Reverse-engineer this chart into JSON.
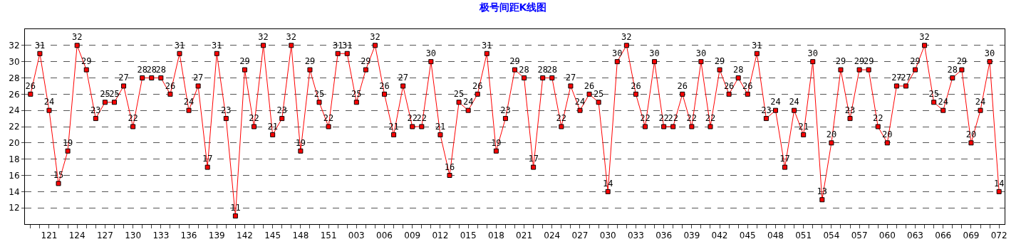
{
  "chart_data": {
    "type": "line",
    "title": "极号间距K线图",
    "categories": [
      null,
      null,
      "121",
      null,
      null,
      "124",
      null,
      null,
      "127",
      null,
      null,
      "130",
      null,
      null,
      "133",
      null,
      null,
      "136",
      null,
      null,
      "139",
      null,
      null,
      "142",
      null,
      null,
      "145",
      null,
      null,
      "148",
      null,
      null,
      "151",
      null,
      null,
      "003",
      null,
      null,
      "006",
      null,
      null,
      "009",
      null,
      null,
      "012",
      null,
      null,
      "015",
      null,
      null,
      "018",
      null,
      null,
      "021",
      null,
      null,
      "024",
      null,
      null,
      "027",
      null,
      null,
      "030",
      null,
      null,
      "033",
      null,
      null,
      "036",
      null,
      null,
      "039",
      null,
      null,
      "042",
      null,
      null,
      "045",
      null,
      null,
      "048",
      null,
      null,
      "051",
      null,
      null,
      "054",
      null,
      null,
      "057",
      null,
      null,
      "060",
      null,
      null,
      "063",
      null,
      null,
      "066",
      null,
      null,
      "069",
      null,
      null,
      "072"
    ],
    "series": [
      {
        "color": "#ff0000",
        "values": [
          26,
          31,
          24,
          15,
          19,
          32,
          29,
          23,
          25,
          25,
          27,
          22,
          28,
          28,
          28,
          26,
          31,
          24,
          27,
          17,
          31,
          23,
          11,
          29,
          22,
          32,
          21,
          23,
          32,
          19,
          29,
          25,
          22,
          31,
          31,
          25,
          29,
          32,
          26,
          21,
          27,
          22,
          22,
          30,
          21,
          16,
          25,
          24,
          26,
          31,
          19,
          23,
          29,
          28,
          17,
          28,
          28,
          22,
          27,
          24,
          26,
          25,
          14,
          30,
          32,
          26,
          22,
          30,
          22,
          22,
          26,
          22,
          30,
          22,
          29,
          26,
          28,
          26,
          31,
          23,
          24,
          17,
          24,
          21,
          30,
          13,
          20,
          29,
          23,
          29,
          29,
          22,
          20,
          27,
          27,
          29,
          32,
          25,
          24,
          28,
          29,
          20,
          24,
          30,
          14
        ]
      }
    ],
    "ylim": [
      10,
      34
    ],
    "yticks": [
      12,
      14,
      16,
      18,
      20,
      22,
      24,
      26,
      28,
      30,
      32
    ],
    "grid": "y",
    "marker": "square",
    "line_style": "solid",
    "data_labels": true
  }
}
